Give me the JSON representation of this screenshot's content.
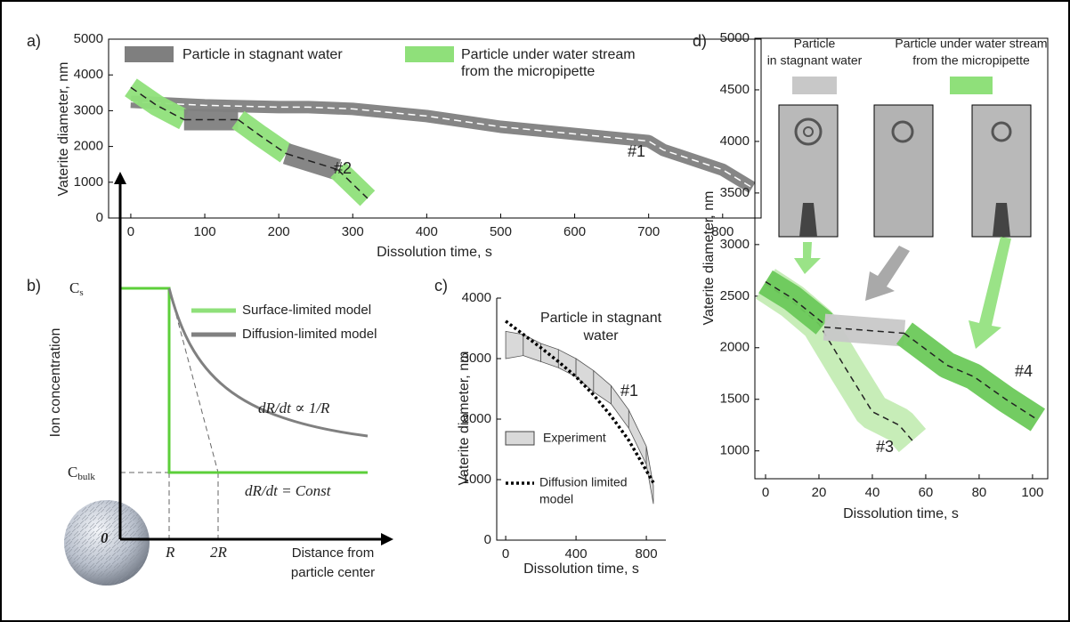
{
  "chart_data": [
    {
      "type": "line",
      "panel_label": "a)",
      "xlabel": "Dissolution time, s",
      "ylabel": "Vaterite diameter, nm",
      "xlim": [
        -30,
        852
      ],
      "xticks": [
        0,
        100,
        200,
        300,
        400,
        500,
        600,
        700,
        800
      ],
      "ylim": [
        0,
        5000
      ],
      "yticks": [
        0,
        1000,
        2000,
        3000,
        4000,
        5000
      ],
      "legend": [
        {
          "label": [
            "Particle in stagnant water"
          ],
          "color": "#7f7f7f"
        },
        {
          "label": [
            "Particle under water stream",
            "from the micropipette"
          ],
          "color": "#8fe07a"
        }
      ],
      "series": [
        {
          "label": "#1",
          "line_color": "#ffffff",
          "line_style": "dashed",
          "pieces": [
            {
              "color": "#7f7f7f",
              "x": [
                0,
                100,
                200,
                240,
                300,
                400,
                500,
                600,
                700,
                720,
                800,
                840
              ],
              "values": [
                3250,
                3150,
                3100,
                3100,
                3050,
                2850,
                2550,
                2350,
                2150,
                1900,
                1350,
                850
              ]
            }
          ]
        },
        {
          "label": "#2",
          "line_color": "#222222",
          "line_style": "dashed",
          "pieces": [
            {
              "color": "#8fe07a",
              "x": [
                0,
                35,
                72
              ],
              "values": [
                3650,
                3150,
                2750
              ]
            },
            {
              "color": "#7f7f7f",
              "x": [
                72,
                145
              ],
              "values": [
                2750,
                2750
              ]
            },
            {
              "color": "#8fe07a",
              "x": [
                145,
                175,
                210
              ],
              "values": [
                2750,
                2300,
                1800
              ]
            },
            {
              "color": "#7f7f7f",
              "x": [
                210,
                280
              ],
              "values": [
                1800,
                1350
              ]
            },
            {
              "color": "#8fe07a",
              "x": [
                280,
                320
              ],
              "values": [
                1350,
                550
              ]
            }
          ]
        }
      ]
    },
    {
      "type": "line",
      "panel_label": "c)",
      "xlabel": "Dissolution time, s",
      "ylabel": "Vaterite diameter, nm",
      "title": [
        "Particle in stagnant",
        "water"
      ],
      "xlim": [
        -51,
        911
      ],
      "xticks": [
        0,
        400,
        800
      ],
      "ylim": [
        0,
        4000
      ],
      "yticks": [
        0,
        1000,
        2000,
        3000,
        4000
      ],
      "legend": [
        {
          "label": [
            "Experiment"
          ],
          "color": "#d9d9d9"
        },
        {
          "label": [
            "Diffusion limited",
            "model"
          ],
          "color": "#000000"
        }
      ],
      "series": [
        {
          "label": "#1",
          "color": "#d9d9d9",
          "x": [
            0,
            100,
            200,
            300,
            400,
            500,
            600,
            700,
            800,
            840
          ],
          "upper": [
            3450,
            3400,
            3250,
            3150,
            3000,
            2800,
            2550,
            2150,
            1550,
            900
          ],
          "lower": [
            3000,
            3050,
            2950,
            2850,
            2700,
            2450,
            2250,
            1850,
            1250,
            600
          ]
        },
        {
          "line_color": "#000000",
          "line_style": "dotted",
          "x": [
            0,
            100,
            200,
            300,
            400,
            500,
            600,
            700,
            800,
            840
          ],
          "values": [
            3620,
            3400,
            3180,
            2950,
            2700,
            2400,
            2050,
            1650,
            1150,
            950
          ]
        }
      ]
    },
    {
      "type": "line",
      "panel_label": "d)",
      "xlabel": "Dissolution time, s",
      "ylabel": "Vaterite diameter, nm",
      "xlim": [
        -4,
        105.7
      ],
      "xticks": [
        0,
        20,
        40,
        60,
        80,
        100
      ],
      "ylim": [
        730,
        5000
      ],
      "yticks": [
        1000,
        1500,
        2000,
        2500,
        3000,
        3500,
        4000,
        4500,
        5000
      ],
      "legend": [
        {
          "label": [
            "Particle",
            "in stagnant water"
          ],
          "color": "#c8c8c8"
        },
        {
          "label": [
            "Particle under water stream",
            "from the micropipette"
          ],
          "color": "#8fe07a"
        }
      ],
      "series": [
        {
          "label": "#3",
          "line_color": "#222222",
          "line_style": "dashed",
          "pieces": [
            {
              "color": "#c4ecb4",
              "x": [
                0,
                10,
                20,
                30,
                40,
                50,
                55
              ],
              "values": [
                2620,
                2450,
                2230,
                1800,
                1380,
                1250,
                1100
              ]
            }
          ]
        },
        {
          "label": "#4",
          "line_color": "#222222",
          "line_style": "dashed",
          "pieces": [
            {
              "color": "#6cc95a",
              "x": [
                0,
                10,
                22
              ],
              "values": [
                2640,
                2480,
                2230
              ]
            },
            {
              "color": "#c8c8c8",
              "x": [
                22,
                52
              ],
              "values": [
                2200,
                2140
              ]
            },
            {
              "color": "#6cc95a",
              "x": [
                52,
                68,
                78,
                90,
                102
              ],
              "values": [
                2140,
                1830,
                1720,
                1500,
                1300
              ]
            }
          ]
        }
      ]
    }
  ],
  "schematic": {
    "panel_label": "b)",
    "y_label": "Ion concentration",
    "x_label": [
      "Distance from",
      "particle center"
    ],
    "c_s": {
      "symbol": "C",
      "subscript": "s"
    },
    "c_bulk": {
      "symbol": "C",
      "subscript": "bulk"
    },
    "legend": [
      "Surface-limited model",
      "Diffusion-limited model"
    ],
    "diffusion_law": "dR/dt ∝ 1/R",
    "surface_law": "dR/dt = Const",
    "origin": "0",
    "r": "R",
    "two_r": "2R"
  }
}
